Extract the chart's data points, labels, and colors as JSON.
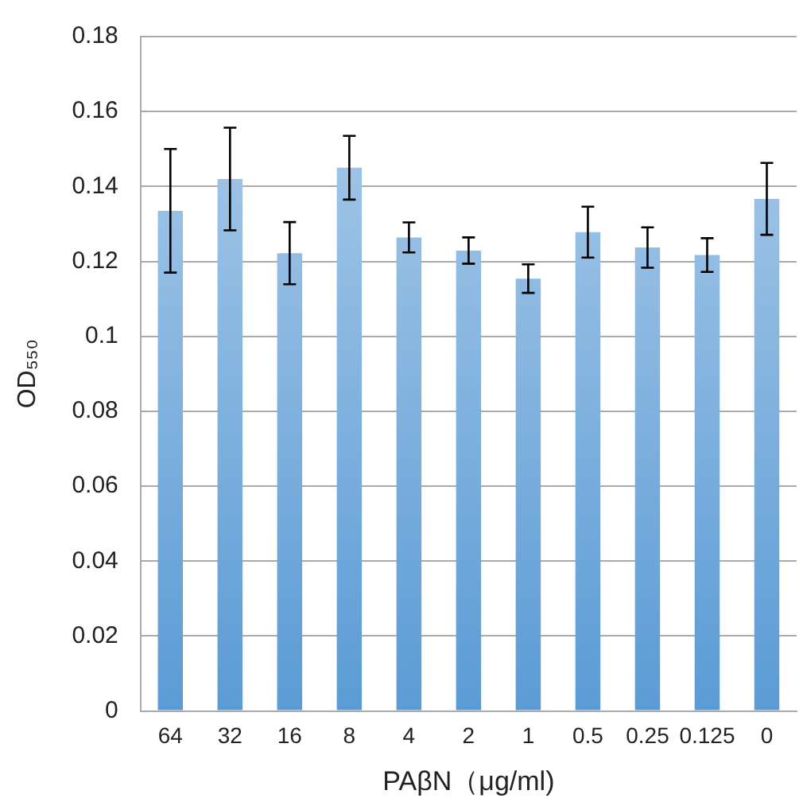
{
  "chart_data": {
    "type": "bar",
    "xlabel": "PAβN（μg/ml)",
    "ylabel": "OD₅₅₀",
    "categories": [
      "64",
      "32",
      "16",
      "8",
      "4",
      "2",
      "1",
      "0.5",
      "0.25",
      "0.125",
      "0"
    ],
    "values": [
      0.1335,
      0.142,
      0.1222,
      0.145,
      0.1264,
      0.1229,
      0.1154,
      0.1278,
      0.1237,
      0.1217,
      0.1367
    ],
    "errors": [
      0.0165,
      0.0137,
      0.0083,
      0.0085,
      0.004,
      0.0035,
      0.0038,
      0.0068,
      0.0054,
      0.0045,
      0.0096
    ],
    "color": "#5b9bd5",
    "ylim": [
      0,
      0.18
    ],
    "yticks": [
      0,
      0.02,
      0.04,
      0.06,
      0.08,
      0.1,
      0.12,
      0.14,
      0.16,
      0.18
    ],
    "grid": "y",
    "legend": false
  }
}
